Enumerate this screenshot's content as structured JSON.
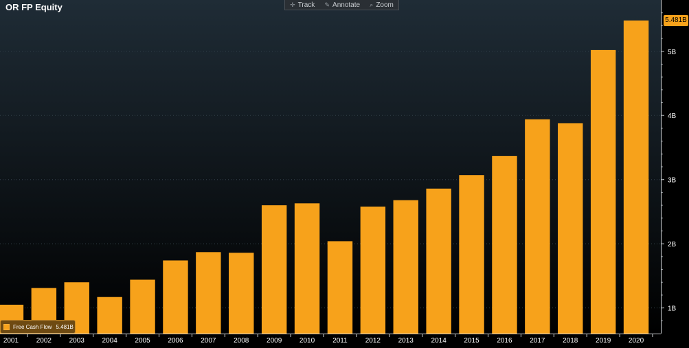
{
  "header": {
    "title": "OR FP Equity"
  },
  "toolbar": {
    "track_label": "Track",
    "annotate_label": "Annotate",
    "zoom_label": "Zoom"
  },
  "legend": {
    "label": "Free Cash Flow",
    "value": "5.481B"
  },
  "last_value_badge": "5.481B",
  "colors": {
    "bar": "#f7a21b",
    "background_top": "#1f2c36",
    "background_bottom": "#000000",
    "axis_text": "#ffffff",
    "grid": "#33404a"
  },
  "chart_data": {
    "type": "bar",
    "title": "OR FP Equity",
    "categories": [
      "2001",
      "2002",
      "2003",
      "2004",
      "2005",
      "2006",
      "2007",
      "2008",
      "2009",
      "2010",
      "2011",
      "2012",
      "2013",
      "2014",
      "2015",
      "2016",
      "2017",
      "2018",
      "2019",
      "2020"
    ],
    "series": [
      {
        "name": "Free Cash Flow",
        "values": [
          1.05,
          1.31,
          1.4,
          1.17,
          1.44,
          1.74,
          1.87,
          1.86,
          2.6,
          2.63,
          2.04,
          2.58,
          2.68,
          2.86,
          3.07,
          3.37,
          3.94,
          3.88,
          5.02,
          5.481
        ]
      }
    ],
    "ylim": [
      0.6,
      5.8
    ],
    "yticks": [
      1,
      2,
      3,
      4,
      5
    ],
    "ytick_labels": [
      "1B",
      "2B",
      "3B",
      "4B",
      "5B"
    ],
    "grid": true,
    "y_axis_side": "right",
    "legend_position": "bottom-left"
  }
}
